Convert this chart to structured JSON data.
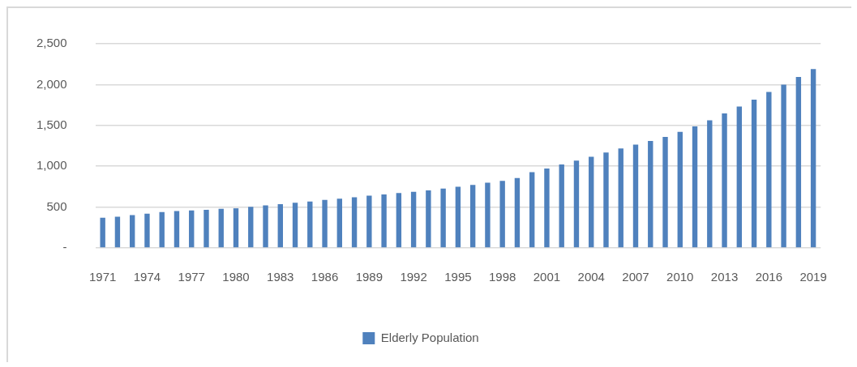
{
  "chart_data": {
    "type": "bar",
    "categories": [
      "1971",
      null,
      null,
      "1974",
      null,
      null,
      "1977",
      null,
      null,
      "1980",
      null,
      null,
      "1983",
      null,
      null,
      "1986",
      null,
      null,
      "1989",
      null,
      null,
      "1992",
      null,
      null,
      "1995",
      null,
      null,
      "1998",
      null,
      null,
      "2001",
      null,
      null,
      "2004",
      null,
      null,
      "2007",
      null,
      null,
      "2010",
      null,
      null,
      "2013",
      null,
      null,
      "2016",
      null,
      null,
      "2019"
    ],
    "series": [
      {
        "name": "Elderly Population",
        "color": "#4f81bd",
        "values": [
          370,
          383,
          401,
          419,
          440,
          452,
          458,
          467,
          479,
          485,
          503,
          521,
          536,
          554,
          569,
          587,
          602,
          620,
          639,
          654,
          672,
          687,
          705,
          726,
          750,
          771,
          798,
          822,
          855,
          928,
          973,
          1021,
          1069,
          1117,
          1169,
          1217,
          1265,
          1310,
          1358,
          1422,
          1488,
          1563,
          1648,
          1732,
          1816,
          1910,
          2000,
          2093,
          2190
        ]
      }
    ],
    "ylim": [
      0,
      2500
    ],
    "yticks": [
      {
        "value": 0,
        "label": "-"
      },
      {
        "value": 500,
        "label": "500"
      },
      {
        "value": 1000,
        "label": "1,000"
      },
      {
        "value": 1500,
        "label": "1,500"
      },
      {
        "value": 2000,
        "label": "2,000"
      },
      {
        "value": 2500,
        "label": "2,500"
      }
    ],
    "grid": "y",
    "legend": "bottom"
  }
}
